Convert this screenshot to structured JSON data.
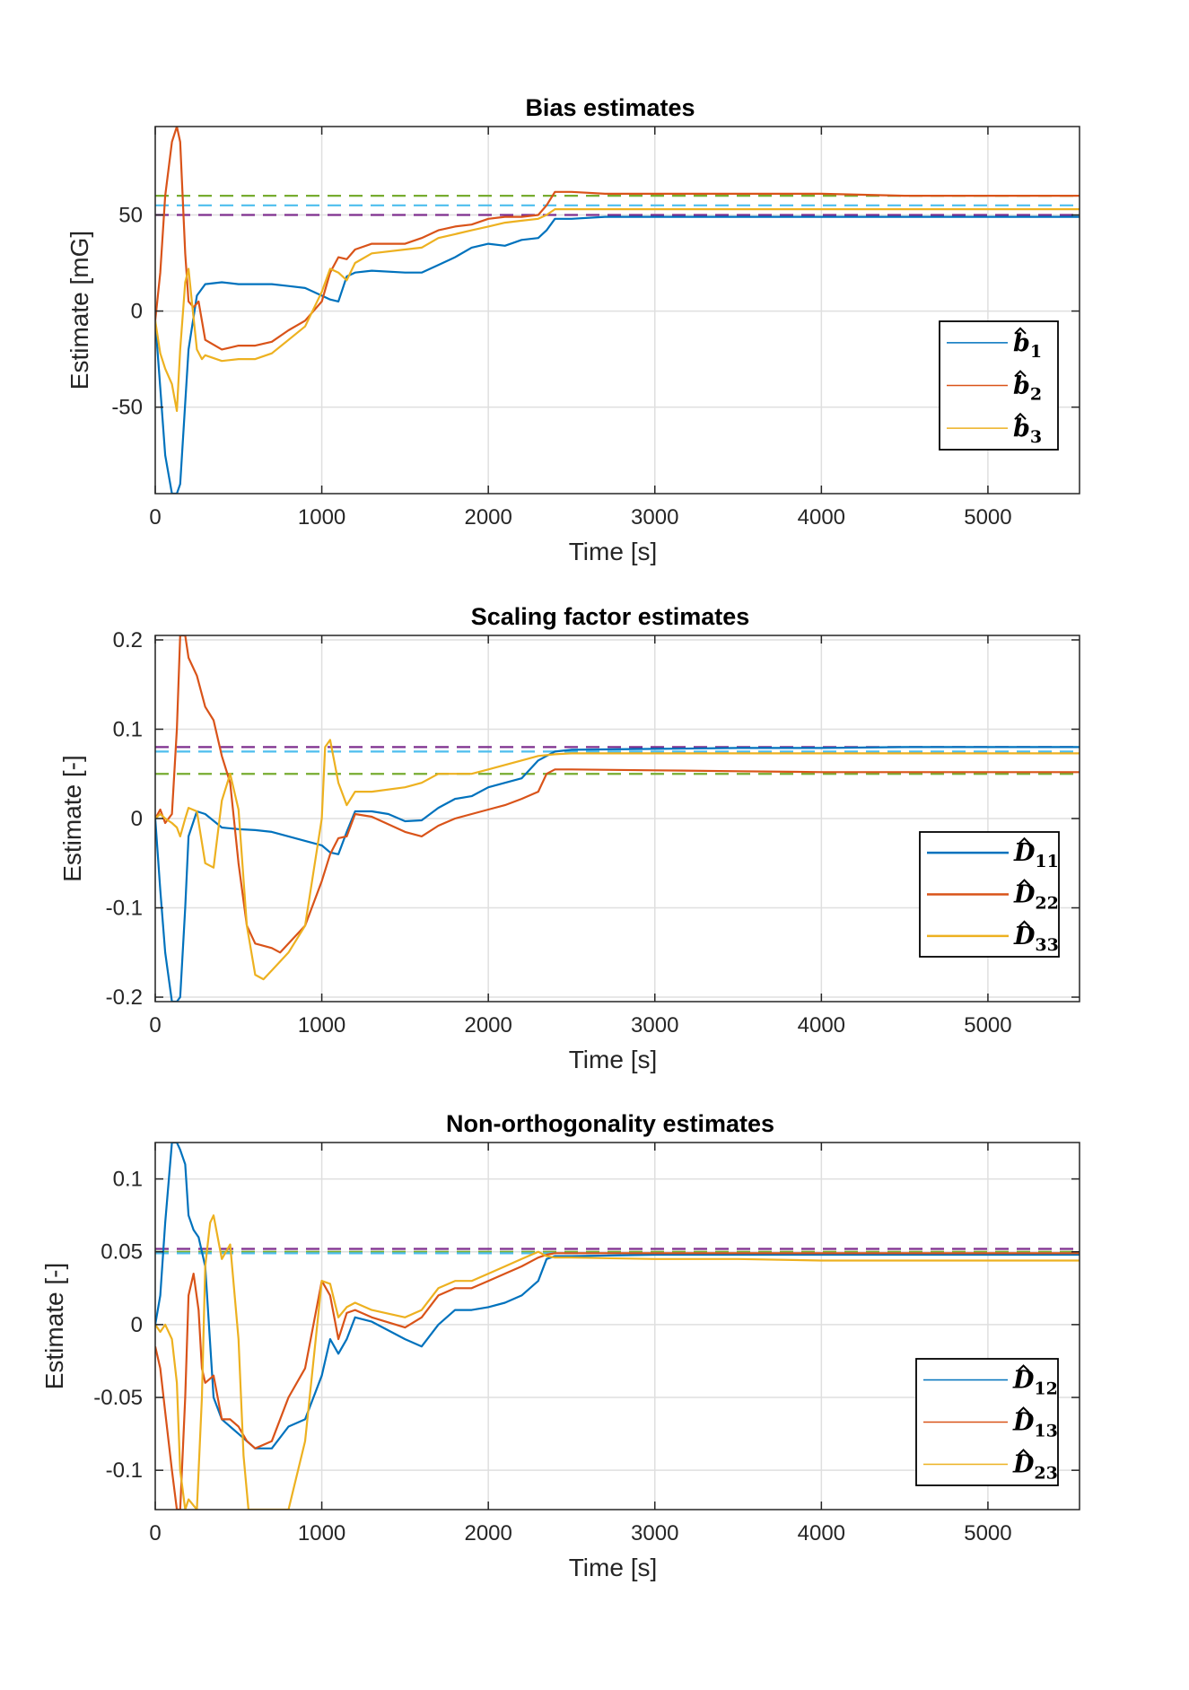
{
  "chart_data": [
    {
      "type": "line",
      "title": "Bias estimates",
      "xlabel": "Time [s]",
      "ylabel": "Estimate [mG]",
      "xlim": [
        0,
        5550
      ],
      "ylim": [
        -95,
        96
      ],
      "xticks": [
        0,
        1000,
        2000,
        3000,
        4000,
        5000
      ],
      "xtick_labels": [
        "0",
        "1000",
        "2000",
        "3000",
        "4000",
        "5000"
      ],
      "yticks": [
        -50,
        0,
        50
      ],
      "ytick_labels": [
        "-50",
        "0",
        "50"
      ],
      "grid": true,
      "legend_position": "right",
      "legend_linewidth": 1.5,
      "series": [
        {
          "legend_base": "b",
          "legend_sub": "1",
          "color": "#0072BD",
          "x": [
            0,
            30,
            60,
            100,
            130,
            150,
            200,
            250,
            300,
            400,
            500,
            600,
            700,
            800,
            900,
            1000,
            1050,
            1100,
            1150,
            1200,
            1300,
            1500,
            1600,
            1700,
            1800,
            1900,
            2000,
            2100,
            2200,
            2300,
            2350,
            2400,
            2500,
            2700,
            3000,
            3500,
            4000,
            4500,
            5000,
            5550
          ],
          "y": [
            -5,
            -40,
            -75,
            -95,
            -95,
            -90,
            -20,
            8,
            14,
            15,
            14,
            14,
            14,
            13,
            12,
            8,
            6,
            5,
            18,
            20,
            21,
            20,
            20,
            24,
            28,
            33,
            35,
            34,
            37,
            38,
            42,
            48,
            48,
            49,
            49,
            49,
            49,
            49,
            49,
            49
          ]
        },
        {
          "legend_base": "b",
          "legend_sub": "2",
          "color": "#D95319",
          "x": [
            0,
            30,
            60,
            100,
            130,
            150,
            180,
            200,
            230,
            260,
            300,
            400,
            500,
            600,
            700,
            800,
            900,
            1000,
            1050,
            1100,
            1150,
            1200,
            1300,
            1500,
            1600,
            1700,
            1800,
            1900,
            2000,
            2100,
            2200,
            2300,
            2350,
            2400,
            2500,
            2700,
            3000,
            3500,
            4000,
            4500,
            5000,
            5550
          ],
          "y": [
            -5,
            20,
            60,
            88,
            96,
            88,
            30,
            5,
            2,
            5,
            -15,
            -20,
            -18,
            -18,
            -16,
            -10,
            -5,
            5,
            20,
            28,
            27,
            32,
            35,
            35,
            38,
            42,
            44,
            45,
            48,
            49,
            49,
            50,
            55,
            62,
            62,
            61,
            61,
            61,
            61,
            60,
            60,
            60
          ]
        },
        {
          "legend_base": "b",
          "legend_sub": "3",
          "color": "#EDB120",
          "x": [
            0,
            30,
            60,
            100,
            130,
            150,
            180,
            200,
            220,
            250,
            280,
            300,
            400,
            500,
            600,
            700,
            800,
            900,
            1000,
            1050,
            1100,
            1150,
            1200,
            1300,
            1500,
            1600,
            1700,
            1800,
            1900,
            2000,
            2100,
            2200,
            2300,
            2350,
            2400,
            2500,
            2700,
            3000,
            3500,
            4000,
            4500,
            5000,
            5550
          ],
          "y": [
            -5,
            -22,
            -30,
            -38,
            -52,
            -20,
            15,
            22,
            5,
            -20,
            -25,
            -23,
            -26,
            -25,
            -25,
            -22,
            -15,
            -8,
            10,
            22,
            20,
            16,
            25,
            30,
            32,
            33,
            38,
            40,
            42,
            44,
            46,
            47,
            48,
            50,
            53,
            53,
            53,
            53,
            53,
            53,
            53,
            53,
            53
          ]
        }
      ],
      "reference_lines": [
        {
          "y": 60,
          "color": "#77AC30"
        },
        {
          "y": 55,
          "color": "#4DBEEE"
        },
        {
          "y": 50,
          "color": "#7E2F8E"
        }
      ]
    },
    {
      "type": "line",
      "title": "Scaling factor estimates",
      "xlabel": "Time [s]",
      "ylabel": "Estimate [-]",
      "xlim": [
        0,
        5550
      ],
      "ylim": [
        -0.205,
        0.205
      ],
      "xticks": [
        0,
        1000,
        2000,
        3000,
        4000,
        5000
      ],
      "xtick_labels": [
        "0",
        "1000",
        "2000",
        "3000",
        "4000",
        "5000"
      ],
      "yticks": [
        -0.2,
        -0.1,
        0,
        0.1,
        0.2
      ],
      "ytick_labels": [
        "-0.2",
        "-0.1",
        "0",
        "0.1",
        "0.2"
      ],
      "grid": true,
      "legend_position": "right",
      "legend_linewidth": 2.5,
      "series": [
        {
          "legend_base": "D",
          "legend_sub": "11",
          "color": "#0072BD",
          "x": [
            0,
            30,
            60,
            100,
            130,
            150,
            180,
            200,
            250,
            300,
            400,
            500,
            600,
            700,
            800,
            900,
            1000,
            1050,
            1100,
            1150,
            1200,
            1300,
            1400,
            1500,
            1600,
            1700,
            1800,
            1900,
            2000,
            2100,
            2200,
            2300,
            2350,
            2400,
            2500,
            3000,
            3500,
            4000,
            4500,
            5000,
            5550
          ],
          "y": [
            0,
            -0.08,
            -0.15,
            -0.205,
            -0.205,
            -0.2,
            -0.1,
            -0.02,
            0.008,
            0.005,
            -0.01,
            -0.012,
            -0.013,
            -0.015,
            -0.02,
            -0.025,
            -0.03,
            -0.038,
            -0.04,
            -0.015,
            0.008,
            0.008,
            0.005,
            -0.003,
            -0.002,
            0.012,
            0.022,
            0.025,
            0.035,
            0.04,
            0.045,
            0.065,
            0.07,
            0.075,
            0.077,
            0.078,
            0.079,
            0.079,
            0.08,
            0.08,
            0.08
          ]
        },
        {
          "legend_base": "D",
          "legend_sub": "22",
          "color": "#D95319",
          "x": [
            0,
            30,
            60,
            100,
            130,
            150,
            180,
            200,
            250,
            300,
            350,
            400,
            450,
            500,
            550,
            600,
            700,
            750,
            800,
            900,
            1000,
            1050,
            1100,
            1150,
            1200,
            1300,
            1500,
            1600,
            1700,
            1800,
            1900,
            2000,
            2100,
            2200,
            2300,
            2350,
            2400,
            2500,
            3000,
            3500,
            4000,
            4500,
            5000,
            5550
          ],
          "y": [
            0,
            0.01,
            -0.005,
            0.005,
            0.1,
            0.205,
            0.205,
            0.18,
            0.16,
            0.125,
            0.11,
            0.07,
            0.04,
            -0.05,
            -0.12,
            -0.14,
            -0.145,
            -0.15,
            -0.14,
            -0.12,
            -0.07,
            -0.04,
            -0.022,
            -0.02,
            0.005,
            0.002,
            -0.015,
            -0.02,
            -0.008,
            0,
            0.005,
            0.01,
            0.015,
            0.022,
            0.03,
            0.05,
            0.055,
            0.055,
            0.054,
            0.053,
            0.052,
            0.052,
            0.052,
            0.052
          ]
        },
        {
          "legend_base": "D",
          "legend_sub": "33",
          "color": "#EDB120",
          "x": [
            0,
            30,
            60,
            100,
            130,
            150,
            180,
            200,
            250,
            300,
            350,
            400,
            450,
            500,
            550,
            600,
            650,
            700,
            800,
            900,
            1000,
            1020,
            1050,
            1100,
            1150,
            1200,
            1300,
            1500,
            1600,
            1700,
            1800,
            1900,
            2000,
            2100,
            2200,
            2300,
            2350,
            2400,
            2500,
            3000,
            3500,
            4000,
            4500,
            5000,
            5550
          ],
          "y": [
            0,
            0.005,
            0,
            -0.005,
            -0.01,
            -0.02,
            0,
            0.012,
            0.008,
            -0.05,
            -0.055,
            0.02,
            0.05,
            0.01,
            -0.12,
            -0.175,
            -0.18,
            -0.17,
            -0.15,
            -0.12,
            0,
            0.08,
            0.088,
            0.04,
            0.015,
            0.03,
            0.03,
            0.035,
            0.04,
            0.05,
            0.05,
            0.05,
            0.055,
            0.06,
            0.065,
            0.07,
            0.071,
            0.072,
            0.073,
            0.073,
            0.073,
            0.073,
            0.073,
            0.073,
            0.073
          ]
        }
      ],
      "reference_lines": [
        {
          "y": 0.08,
          "color": "#7E2F8E"
        },
        {
          "y": 0.075,
          "color": "#4DBEEE"
        },
        {
          "y": 0.05,
          "color": "#77AC30"
        }
      ]
    },
    {
      "type": "line",
      "title": "Non-orthogonality estimates",
      "xlabel": "Time [s]",
      "ylabel": "Estimate [-]",
      "xlim": [
        0,
        5550
      ],
      "ylim": [
        -0.127,
        0.125
      ],
      "xticks": [
        0,
        1000,
        2000,
        3000,
        4000,
        5000
      ],
      "xtick_labels": [
        "0",
        "1000",
        "2000",
        "3000",
        "4000",
        "5000"
      ],
      "yticks": [
        -0.1,
        -0.05,
        0,
        0.05,
        0.1
      ],
      "ytick_labels": [
        "-0.1",
        "-0.05",
        "0",
        "0.05",
        "0.1"
      ],
      "grid": true,
      "legend_position": "right",
      "legend_linewidth": 1.5,
      "series": [
        {
          "legend_base": "D",
          "legend_sub": "12",
          "color": "#0072BD",
          "x": [
            0,
            30,
            60,
            100,
            130,
            150,
            180,
            200,
            230,
            260,
            300,
            350,
            400,
            450,
            500,
            550,
            600,
            700,
            800,
            900,
            1000,
            1050,
            1100,
            1150,
            1200,
            1300,
            1500,
            1600,
            1700,
            1800,
            1900,
            2000,
            2100,
            2200,
            2300,
            2350,
            2400,
            2500,
            3000,
            3500,
            4000,
            4500,
            5000,
            5550
          ],
          "y": [
            0,
            0.02,
            0.07,
            0.125,
            0.125,
            0.12,
            0.11,
            0.075,
            0.065,
            0.06,
            0.04,
            -0.05,
            -0.065,
            -0.07,
            -0.075,
            -0.08,
            -0.085,
            -0.085,
            -0.07,
            -0.065,
            -0.035,
            -0.01,
            -0.02,
            -0.01,
            0.005,
            0.002,
            -0.01,
            -0.015,
            0,
            0.01,
            0.01,
            0.012,
            0.015,
            0.02,
            0.03,
            0.045,
            0.047,
            0.047,
            0.048,
            0.048,
            0.048,
            0.048,
            0.048,
            0.048
          ]
        },
        {
          "legend_base": "D",
          "legend_sub": "13",
          "color": "#D95319",
          "x": [
            0,
            30,
            60,
            100,
            130,
            150,
            180,
            200,
            230,
            260,
            280,
            300,
            350,
            400,
            450,
            500,
            550,
            600,
            700,
            800,
            900,
            1000,
            1050,
            1100,
            1150,
            1200,
            1300,
            1500,
            1600,
            1700,
            1800,
            1900,
            2000,
            2100,
            2200,
            2300,
            2350,
            2400,
            2500,
            3000,
            3500,
            4000,
            4500,
            5000,
            5550
          ],
          "y": [
            -0.015,
            -0.03,
            -0.06,
            -0.1,
            -0.127,
            -0.127,
            -0.05,
            0.02,
            0.035,
            0.01,
            -0.03,
            -0.04,
            -0.035,
            -0.065,
            -0.065,
            -0.07,
            -0.08,
            -0.085,
            -0.08,
            -0.05,
            -0.03,
            0.03,
            0.02,
            -0.01,
            0.008,
            0.01,
            0.005,
            -0.002,
            0.005,
            0.02,
            0.025,
            0.025,
            0.03,
            0.035,
            0.04,
            0.046,
            0.048,
            0.049,
            0.049,
            0.049,
            0.049,
            0.049,
            0.049,
            0.049,
            0.049
          ]
        },
        {
          "legend_base": "D",
          "legend_sub": "23",
          "color": "#EDB120",
          "x": [
            0,
            30,
            60,
            100,
            130,
            150,
            180,
            200,
            250,
            280,
            300,
            330,
            350,
            400,
            450,
            500,
            530,
            560,
            600,
            650,
            700,
            800,
            900,
            1000,
            1050,
            1100,
            1150,
            1200,
            1300,
            1500,
            1600,
            1700,
            1800,
            1900,
            2000,
            2100,
            2200,
            2300,
            2350,
            2400,
            2500,
            3000,
            3500,
            4000,
            4500,
            5000,
            5550
          ],
          "y": [
            0,
            -0.005,
            0,
            -0.01,
            -0.04,
            -0.1,
            -0.127,
            -0.12,
            -0.127,
            -0.05,
            0.04,
            0.07,
            0.075,
            0.045,
            0.055,
            -0.01,
            -0.09,
            -0.127,
            -0.127,
            -0.127,
            -0.127,
            -0.127,
            -0.08,
            0.03,
            0.028,
            0.005,
            0.012,
            0.015,
            0.01,
            0.005,
            0.01,
            0.025,
            0.03,
            0.03,
            0.035,
            0.04,
            0.045,
            0.05,
            0.047,
            0.046,
            0.046,
            0.045,
            0.045,
            0.044,
            0.044,
            0.044,
            0.044
          ]
        }
      ],
      "reference_lines": [
        {
          "y": 0.052,
          "color": "#7E2F8E"
        },
        {
          "y": 0.05,
          "color": "#77AC30"
        },
        {
          "y": 0.049,
          "color": "#4DBEEE"
        }
      ]
    }
  ]
}
